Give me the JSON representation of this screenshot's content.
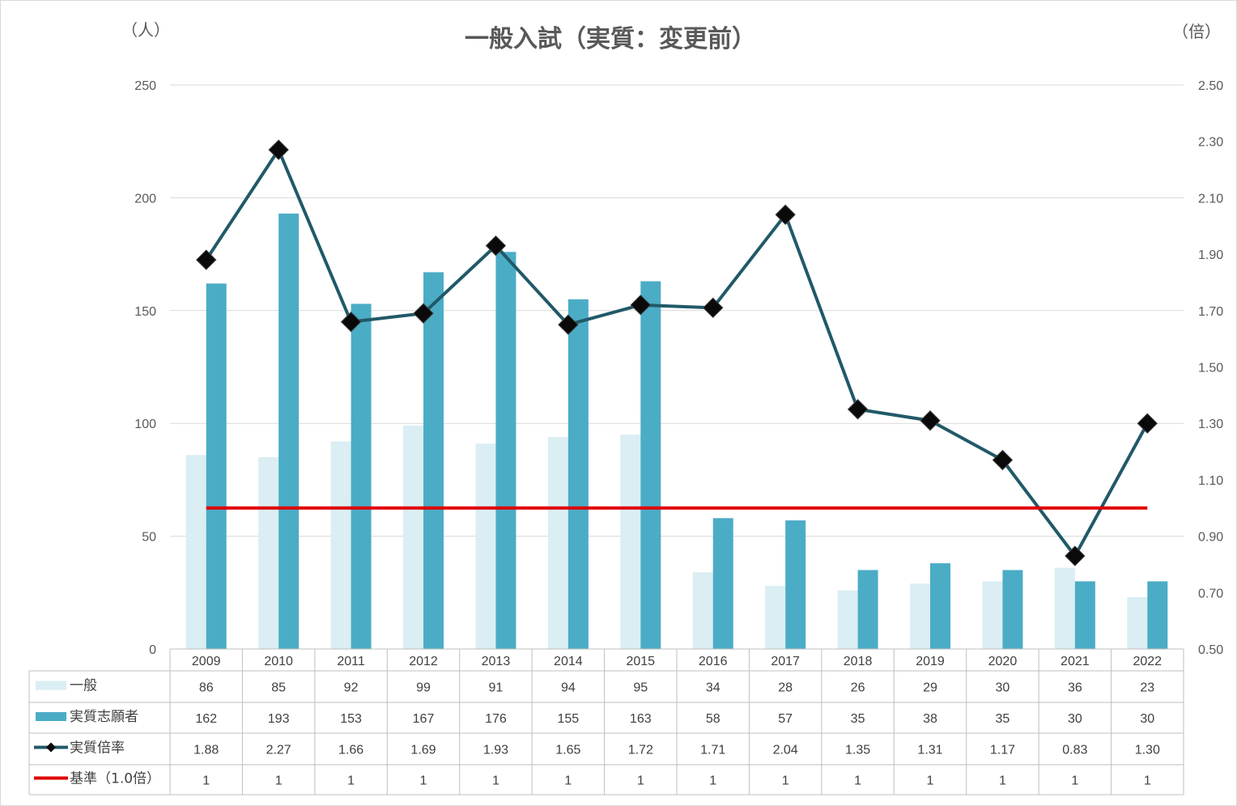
{
  "chart_data": {
    "type": "bar",
    "title": "一般入試（実質：変更前）",
    "left_unit": "（人）",
    "right_unit": "（倍）",
    "categories": [
      "2009",
      "2010",
      "2011",
      "2012",
      "2013",
      "2014",
      "2015",
      "2016",
      "2017",
      "2018",
      "2019",
      "2020",
      "2021",
      "2022"
    ],
    "left_axis": {
      "min": 0,
      "max": 250,
      "ticks": [
        "0",
        "50",
        "100",
        "150",
        "200",
        "250"
      ],
      "tick_values": [
        0,
        50,
        100,
        150,
        200,
        250
      ]
    },
    "right_axis": {
      "min": 0.5,
      "max": 2.5,
      "ticks": [
        "0.50",
        "0.70",
        "0.90",
        "1.10",
        "1.30",
        "1.50",
        "1.70",
        "1.90",
        "2.10",
        "2.30",
        "2.50"
      ],
      "tick_values": [
        0.5,
        0.7,
        0.9,
        1.1,
        1.3,
        1.5,
        1.7,
        1.9,
        2.1,
        2.3,
        2.5
      ]
    },
    "grid": true,
    "legend_placement": "data-table",
    "series": [
      {
        "name": "一般",
        "kind": "bar",
        "axis": "left",
        "color": "#daeef3",
        "values": [
          86,
          85,
          92,
          99,
          91,
          94,
          95,
          34,
          28,
          26,
          29,
          30,
          36,
          23
        ],
        "labels": [
          "86",
          "85",
          "92",
          "99",
          "91",
          "94",
          "95",
          "34",
          "28",
          "26",
          "29",
          "30",
          "36",
          "23"
        ]
      },
      {
        "name": "実質志願者",
        "kind": "bar",
        "axis": "left",
        "color": "#4bacc6",
        "values": [
          162,
          193,
          153,
          167,
          176,
          155,
          163,
          58,
          57,
          35,
          38,
          35,
          30,
          30
        ],
        "labels": [
          "162",
          "193",
          "153",
          "167",
          "176",
          "155",
          "163",
          "58",
          "57",
          "35",
          "38",
          "35",
          "30",
          "30"
        ]
      },
      {
        "name": "実質倍率",
        "kind": "line",
        "axis": "right",
        "color": "#215968",
        "marker": "diamond",
        "values": [
          1.88,
          2.27,
          1.66,
          1.69,
          1.93,
          1.65,
          1.72,
          1.71,
          2.04,
          1.35,
          1.31,
          1.17,
          0.83,
          1.3
        ],
        "labels": [
          "1.88",
          "2.27",
          "1.66",
          "1.69",
          "1.93",
          "1.65",
          "1.72",
          "1.71",
          "2.04",
          "1.35",
          "1.31",
          "1.17",
          "0.83",
          "1.30"
        ]
      },
      {
        "name": "基準（1.0倍）",
        "kind": "line",
        "axis": "right",
        "color": "#e00000",
        "values": [
          1,
          1,
          1,
          1,
          1,
          1,
          1,
          1,
          1,
          1,
          1,
          1,
          1,
          1
        ],
        "labels": [
          "1",
          "1",
          "1",
          "1",
          "1",
          "1",
          "1",
          "1",
          "1",
          "1",
          "1",
          "1",
          "1",
          "1"
        ]
      }
    ]
  }
}
